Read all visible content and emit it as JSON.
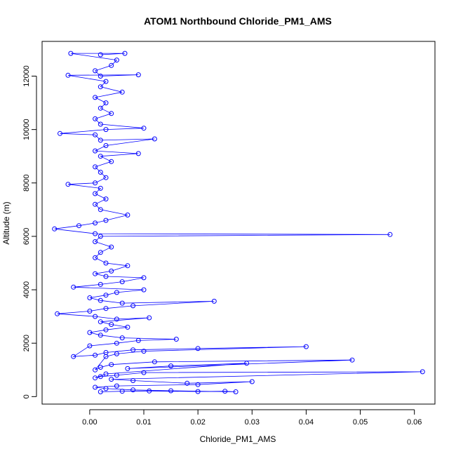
{
  "chart_data": {
    "type": "scatter",
    "title": "ATOM1 Northbound Chloride_PM1_AMS",
    "xlabel": "Chloride_PM1_AMS",
    "ylabel": "Altitude (m)",
    "xlim": [
      -0.0088,
      0.0638
    ],
    "ylim": [
      -280,
      13300
    ],
    "x_ticks": [
      0.0,
      0.01,
      0.02,
      0.03,
      0.04,
      0.05,
      0.06
    ],
    "x_tick_labels": [
      "0.00",
      "0.01",
      "0.02",
      "0.03",
      "0.04",
      "0.05",
      "0.06"
    ],
    "y_ticks": [
      0,
      2000,
      4000,
      6000,
      8000,
      10000,
      12000
    ],
    "y_tick_labels": [
      "0",
      "2000",
      "4000",
      "6000",
      "8000",
      "10000",
      "12000"
    ],
    "marker": "open-circle",
    "connected": true,
    "grid": false,
    "series_color": "#0000ff",
    "series": [
      {
        "points": [
          [
            0.002,
            180
          ],
          [
            0.006,
            200
          ],
          [
            0.011,
            210
          ],
          [
            0.02,
            190
          ],
          [
            0.025,
            200
          ],
          [
            0.027,
            180
          ],
          [
            0.015,
            220
          ],
          [
            0.008,
            250
          ],
          [
            0.003,
            300
          ],
          [
            0.001,
            350
          ],
          [
            0.005,
            400
          ],
          [
            0.02,
            450
          ],
          [
            0.03,
            560
          ],
          [
            0.018,
            500
          ],
          [
            0.008,
            600
          ],
          [
            0.004,
            650
          ],
          [
            0.0615,
            930
          ],
          [
            0.01,
            900
          ],
          [
            0.005,
            800
          ],
          [
            0.002,
            750
          ],
          [
            0.001,
            700
          ],
          [
            0.003,
            850
          ],
          [
            0.029,
            1250
          ],
          [
            0.015,
            1150
          ],
          [
            0.007,
            1050
          ],
          [
            0.0485,
            1370
          ],
          [
            0.012,
            1300
          ],
          [
            0.004,
            1200
          ],
          [
            0.002,
            1100
          ],
          [
            0.001,
            1000
          ],
          [
            0.003,
            1500
          ],
          [
            0.005,
            1600
          ],
          [
            0.01,
            1700
          ],
          [
            0.04,
            1870
          ],
          [
            0.02,
            1800
          ],
          [
            0.008,
            1750
          ],
          [
            0.003,
            1650
          ],
          [
            0.001,
            1550
          ],
          [
            -0.003,
            1500
          ],
          [
            0.0,
            1900
          ],
          [
            0.005,
            2000
          ],
          [
            0.009,
            2100
          ],
          [
            0.016,
            2150
          ],
          [
            0.006,
            2200
          ],
          [
            0.002,
            2300
          ],
          [
            0.0,
            2400
          ],
          [
            0.003,
            2500
          ],
          [
            0.007,
            2600
          ],
          [
            0.004,
            2700
          ],
          [
            0.002,
            2800
          ],
          [
            0.011,
            2950
          ],
          [
            0.005,
            2900
          ],
          [
            0.001,
            3000
          ],
          [
            -0.006,
            3100
          ],
          [
            0.0,
            3200
          ],
          [
            0.003,
            3300
          ],
          [
            0.008,
            3400
          ],
          [
            0.023,
            3570
          ],
          [
            0.006,
            3500
          ],
          [
            0.002,
            3600
          ],
          [
            0.0,
            3700
          ],
          [
            0.003,
            3800
          ],
          [
            0.005,
            3900
          ],
          [
            0.01,
            4000
          ],
          [
            -0.003,
            4100
          ],
          [
            0.002,
            4200
          ],
          [
            0.006,
            4300
          ],
          [
            0.01,
            4450
          ],
          [
            0.003,
            4500
          ],
          [
            0.001,
            4600
          ],
          [
            0.004,
            4700
          ],
          [
            0.007,
            4900
          ],
          [
            0.003,
            5000
          ],
          [
            0.001,
            5200
          ],
          [
            0.002,
            5400
          ],
          [
            0.004,
            5600
          ],
          [
            0.001,
            5800
          ],
          [
            0.002,
            6000
          ],
          [
            0.0555,
            6070
          ],
          [
            0.001,
            6100
          ],
          [
            -0.0065,
            6280
          ],
          [
            -0.002,
            6400
          ],
          [
            0.001,
            6500
          ],
          [
            0.003,
            6600
          ],
          [
            0.007,
            6800
          ],
          [
            0.002,
            7000
          ],
          [
            0.001,
            7200
          ],
          [
            0.003,
            7400
          ],
          [
            0.001,
            7600
          ],
          [
            0.002,
            7800
          ],
          [
            -0.004,
            7950
          ],
          [
            0.001,
            8000
          ],
          [
            0.003,
            8200
          ],
          [
            0.002,
            8400
          ],
          [
            0.001,
            8600
          ],
          [
            0.004,
            8800
          ],
          [
            0.002,
            9000
          ],
          [
            0.009,
            9100
          ],
          [
            0.001,
            9200
          ],
          [
            0.003,
            9400
          ],
          [
            0.012,
            9650
          ],
          [
            0.002,
            9600
          ],
          [
            0.001,
            9800
          ],
          [
            -0.0055,
            9850
          ],
          [
            0.003,
            10000
          ],
          [
            0.01,
            10050
          ],
          [
            0.002,
            10200
          ],
          [
            0.001,
            10400
          ],
          [
            0.004,
            10600
          ],
          [
            0.002,
            10800
          ],
          [
            0.003,
            11000
          ],
          [
            0.001,
            11200
          ],
          [
            0.006,
            11400
          ],
          [
            0.002,
            11600
          ],
          [
            0.003,
            11800
          ],
          [
            -0.004,
            12030
          ],
          [
            0.009,
            12050
          ],
          [
            0.002,
            12000
          ],
          [
            0.001,
            12200
          ],
          [
            0.004,
            12400
          ],
          [
            0.005,
            12600
          ],
          [
            -0.0035,
            12850
          ],
          [
            0.0065,
            12850
          ],
          [
            0.002,
            12800
          ]
        ]
      }
    ]
  }
}
